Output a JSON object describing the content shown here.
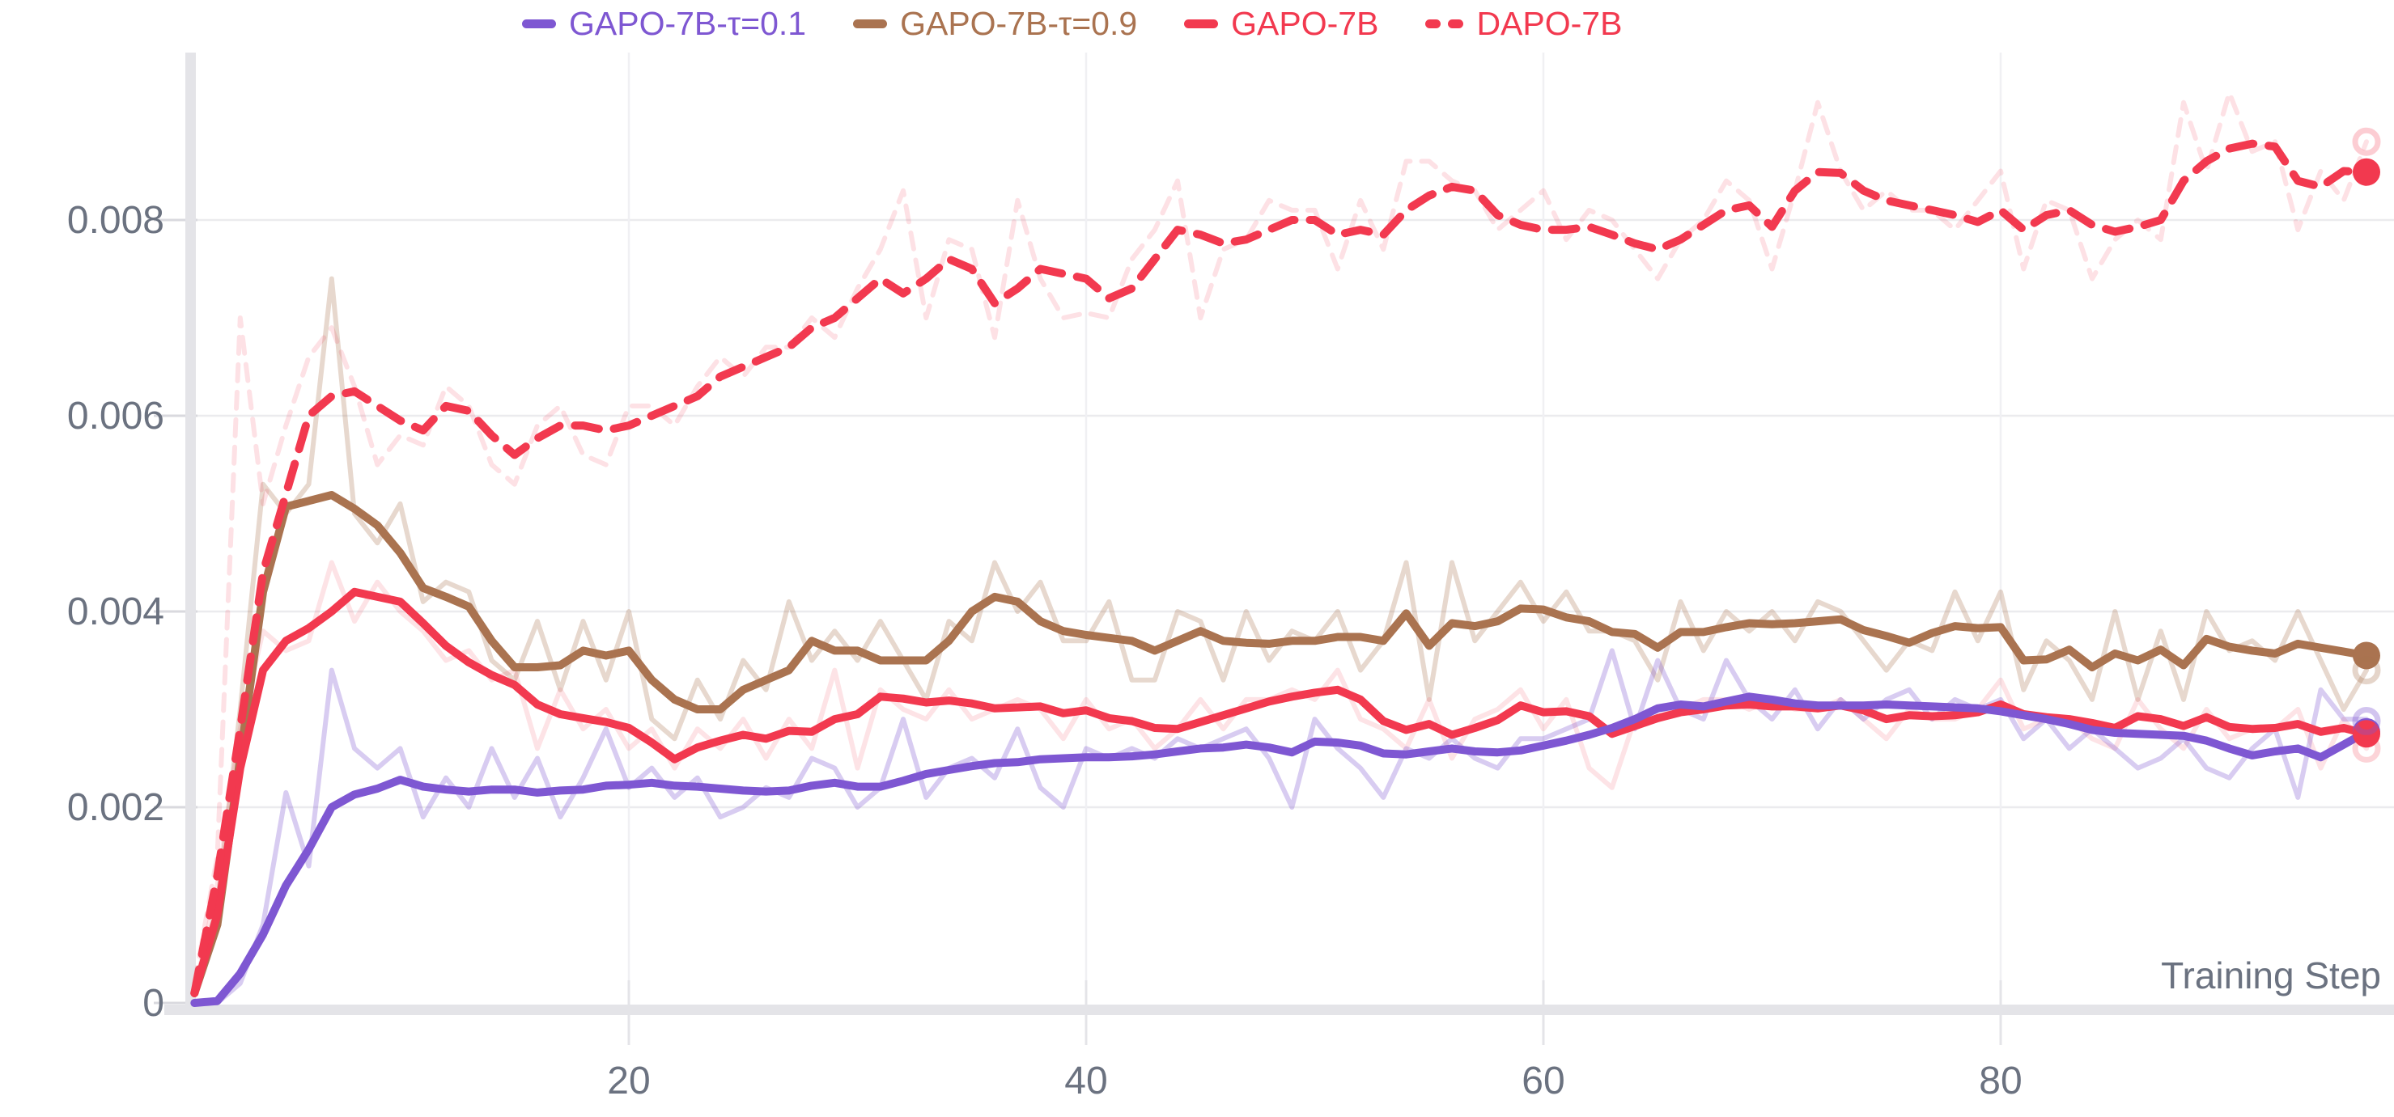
{
  "legend": {
    "items": [
      {
        "label": "GAPO-7B-τ=0.1",
        "color": "#7e57d2",
        "dashed": false
      },
      {
        "label": "GAPO-7B-τ=0.9",
        "color": "#aa7350",
        "dashed": false
      },
      {
        "label": "GAPO-7B",
        "color": "#f2394f",
        "dashed": false
      },
      {
        "label": "DAPO-7B",
        "color": "#f2394f",
        "dashed": true
      }
    ]
  },
  "axes": {
    "x_label": "Training Step",
    "x_ticks": [
      20,
      40,
      60,
      80
    ],
    "y_ticks": [
      0,
      0.002,
      0.004,
      0.006,
      0.008
    ],
    "y_tick_labels": [
      "0",
      "0.002",
      "0.004",
      "0.006",
      "0.008"
    ],
    "tick_color": "#6b7280",
    "grid_color": "#ebebee",
    "axis_bar_color": "#e4e4e8"
  },
  "chart_data": {
    "type": "line",
    "title": "",
    "xlabel": "Training Step",
    "ylabel": "",
    "x_start": 1,
    "x_end": 96,
    "xlim": [
      0,
      97.5
    ],
    "ylim": [
      -0.0014,
      0.0097
    ],
    "grid": true,
    "legend_position": "top-center",
    "series": [
      {
        "name": "GAPO-7B-τ=0.9-raw",
        "role": "raw",
        "color": "#aa7350",
        "opacity": 0.28,
        "dashed": false,
        "width": 6,
        "values": [
          0.0001,
          0.001,
          0.003,
          0.0053,
          0.005,
          0.0053,
          0.0074,
          0.005,
          0.0047,
          0.0051,
          0.0041,
          0.0043,
          0.0042,
          0.0035,
          0.0033,
          0.0039,
          0.0032,
          0.0039,
          0.0033,
          0.004,
          0.0029,
          0.0027,
          0.0033,
          0.0029,
          0.0035,
          0.0032,
          0.0041,
          0.0035,
          0.0038,
          0.0035,
          0.0039,
          0.0035,
          0.0031,
          0.0039,
          0.0037,
          0.0045,
          0.004,
          0.0043,
          0.0037,
          0.0037,
          0.0041,
          0.0033,
          0.0033,
          0.004,
          0.0039,
          0.0033,
          0.004,
          0.0035,
          0.0038,
          0.0037,
          0.004,
          0.0034,
          0.0037,
          0.0045,
          0.0031,
          0.0045,
          0.0037,
          0.004,
          0.0043,
          0.0039,
          0.0042,
          0.0038,
          0.0038,
          0.0037,
          0.0033,
          0.0041,
          0.0036,
          0.004,
          0.0038,
          0.004,
          0.0037,
          0.0041,
          0.004,
          0.0037,
          0.0034,
          0.0037,
          0.0036,
          0.0042,
          0.0037,
          0.0042,
          0.0032,
          0.0037,
          0.0035,
          0.0031,
          0.004,
          0.0031,
          0.0038,
          0.0031,
          0.004,
          0.0036,
          0.0037,
          0.0035,
          0.004,
          0.0035,
          0.003,
          0.0034
        ]
      },
      {
        "name": "GAPO-7B-raw",
        "role": "raw",
        "color": "#f2394f",
        "opacity": 0.14,
        "dashed": false,
        "width": 6,
        "values": [
          0.0001,
          0.0012,
          0.0028,
          0.0038,
          0.0036,
          0.0037,
          0.0045,
          0.0039,
          0.0043,
          0.004,
          0.0038,
          0.0035,
          0.0036,
          0.0033,
          0.0034,
          0.0026,
          0.0032,
          0.0028,
          0.003,
          0.0026,
          0.0028,
          0.0024,
          0.0028,
          0.0026,
          0.0029,
          0.0025,
          0.0029,
          0.0026,
          0.0034,
          0.0024,
          0.0032,
          0.003,
          0.0029,
          0.0032,
          0.0029,
          0.003,
          0.0031,
          0.003,
          0.0027,
          0.0031,
          0.0028,
          0.0029,
          0.0026,
          0.0028,
          0.0031,
          0.0028,
          0.0031,
          0.0031,
          0.0032,
          0.0031,
          0.0034,
          0.0029,
          0.0028,
          0.0026,
          0.0031,
          0.0025,
          0.0029,
          0.003,
          0.0032,
          0.0028,
          0.0031,
          0.0024,
          0.0022,
          0.0029,
          0.003,
          0.003,
          0.0031,
          0.0031,
          0.003,
          0.0031,
          0.003,
          0.003,
          0.0031,
          0.0029,
          0.0027,
          0.003,
          0.0029,
          0.0029,
          0.003,
          0.0033,
          0.0028,
          0.0029,
          0.0029,
          0.0027,
          0.0026,
          0.0031,
          0.0028,
          0.0026,
          0.003,
          0.0027,
          0.0028,
          0.0028,
          0.003,
          0.0024,
          0.0029,
          0.0026
        ]
      },
      {
        "name": "GAPO-7B-τ=0.1-raw",
        "role": "raw",
        "color": "#7e57d2",
        "opacity": 0.3,
        "dashed": false,
        "width": 6,
        "values": [
          0.0,
          0.0,
          0.0002,
          0.0008,
          0.00215,
          0.0014,
          0.0034,
          0.0026,
          0.0024,
          0.0026,
          0.0019,
          0.0023,
          0.002,
          0.0026,
          0.0021,
          0.0025,
          0.0019,
          0.0023,
          0.0028,
          0.0022,
          0.0024,
          0.0021,
          0.0023,
          0.0019,
          0.002,
          0.0022,
          0.0021,
          0.0025,
          0.0024,
          0.002,
          0.0022,
          0.0029,
          0.0021,
          0.0024,
          0.0025,
          0.0023,
          0.0028,
          0.0022,
          0.002,
          0.0026,
          0.0025,
          0.0026,
          0.0025,
          0.0027,
          0.0026,
          0.0027,
          0.0028,
          0.0025,
          0.002,
          0.0029,
          0.0026,
          0.0024,
          0.0021,
          0.0026,
          0.0025,
          0.0027,
          0.0025,
          0.0024,
          0.0027,
          0.0027,
          0.0028,
          0.0029,
          0.0036,
          0.0028,
          0.0035,
          0.003,
          0.0029,
          0.0035,
          0.0031,
          0.0029,
          0.0032,
          0.0028,
          0.0031,
          0.0029,
          0.0031,
          0.0032,
          0.0029,
          0.0031,
          0.003,
          0.0031,
          0.0027,
          0.0029,
          0.0026,
          0.0028,
          0.0026,
          0.0024,
          0.0025,
          0.0027,
          0.0024,
          0.0023,
          0.0026,
          0.0028,
          0.0021,
          0.0032,
          0.0029,
          0.0029
        ]
      },
      {
        "name": "DAPO-7B-raw",
        "role": "raw",
        "color": "#f2394f",
        "opacity": 0.15,
        "dashed": true,
        "width": 6,
        "values": [
          0.0002,
          0.0015,
          0.007,
          0.0051,
          0.0059,
          0.0066,
          0.0069,
          0.0063,
          0.0055,
          0.0058,
          0.0057,
          0.0063,
          0.0061,
          0.0055,
          0.0053,
          0.0059,
          0.0061,
          0.0056,
          0.0055,
          0.0061,
          0.0061,
          0.0059,
          0.0063,
          0.0066,
          0.0064,
          0.0067,
          0.0067,
          0.007,
          0.0068,
          0.0073,
          0.0077,
          0.0083,
          0.007,
          0.0078,
          0.0077,
          0.0068,
          0.0082,
          0.0074,
          0.007,
          0.00705,
          0.007,
          0.0076,
          0.0079,
          0.0084,
          0.007,
          0.0077,
          0.0078,
          0.0082,
          0.0081,
          0.0081,
          0.0075,
          0.0082,
          0.0077,
          0.0086,
          0.0086,
          0.0084,
          0.0083,
          0.0079,
          0.0081,
          0.0083,
          0.0078,
          0.0081,
          0.008,
          0.0077,
          0.0074,
          0.0078,
          0.008,
          0.0084,
          0.0082,
          0.0075,
          0.0083,
          0.0092,
          0.0085,
          0.0081,
          0.0083,
          0.0081,
          0.0081,
          0.0079,
          0.0082,
          0.0085,
          0.0075,
          0.0082,
          0.0081,
          0.0074,
          0.0078,
          0.008,
          0.0078,
          0.0092,
          0.0085,
          0.0093,
          0.0087,
          0.0088,
          0.0079,
          0.0085,
          0.0082,
          0.0088
        ]
      },
      {
        "name": "GAPO-7B-τ=0.9",
        "role": "smoothed",
        "color": "#aa7350",
        "opacity": 1,
        "dashed": false,
        "width": 10,
        "values": [
          0.0001,
          0.0008,
          0.0025,
          0.0042,
          0.00507,
          0.00513,
          0.00519,
          0.00505,
          0.00488,
          0.0046,
          0.00424,
          0.00415,
          0.00405,
          0.0037,
          0.00343,
          0.00343,
          0.00345,
          0.0036,
          0.00355,
          0.0036,
          0.0033,
          0.0031,
          0.003,
          0.003,
          0.0032,
          0.0033,
          0.0034,
          0.0037,
          0.0036,
          0.0036,
          0.0035,
          0.0035,
          0.0035,
          0.0037,
          0.004,
          0.00415,
          0.0041,
          0.0039,
          0.0038,
          0.00376,
          0.00373,
          0.0037,
          0.0036,
          0.0037,
          0.0038,
          0.0037,
          0.00368,
          0.00367,
          0.0037,
          0.0037,
          0.00374,
          0.00374,
          0.0037,
          0.00398,
          0.00365,
          0.00388,
          0.00385,
          0.0039,
          0.00403,
          0.00402,
          0.00394,
          0.0039,
          0.00379,
          0.00377,
          0.00363,
          0.00379,
          0.00379,
          0.00384,
          0.00388,
          0.00387,
          0.00388,
          0.0039,
          0.00392,
          0.00381,
          0.00375,
          0.00368,
          0.00378,
          0.00385,
          0.00383,
          0.00384,
          0.0035,
          0.00351,
          0.00361,
          0.00343,
          0.00357,
          0.0035,
          0.00361,
          0.00345,
          0.00372,
          0.00364,
          0.0036,
          0.00357,
          0.00367,
          0.00363,
          0.00359,
          0.00355
        ]
      },
      {
        "name": "GAPO-7B",
        "role": "smoothed",
        "color": "#f2394f",
        "opacity": 1,
        "dashed": false,
        "width": 10,
        "values": [
          0.0001,
          0.0009,
          0.0024,
          0.0034,
          0.0037,
          0.00383,
          0.004,
          0.0042,
          0.00415,
          0.0041,
          0.00388,
          0.00365,
          0.00348,
          0.00335,
          0.00325,
          0.00305,
          0.00295,
          0.00291,
          0.00287,
          0.00281,
          0.00266,
          0.00249,
          0.00261,
          0.00268,
          0.00274,
          0.0027,
          0.00278,
          0.00277,
          0.0029,
          0.00295,
          0.00313,
          0.00311,
          0.00307,
          0.00309,
          0.00306,
          0.00301,
          0.00302,
          0.00303,
          0.00296,
          0.00299,
          0.00291,
          0.00288,
          0.00281,
          0.0028,
          0.00287,
          0.00294,
          0.00301,
          0.00308,
          0.00313,
          0.00317,
          0.0032,
          0.0031,
          0.00288,
          0.00279,
          0.00285,
          0.00274,
          0.00281,
          0.00289,
          0.00304,
          0.00297,
          0.00298,
          0.00293,
          0.00275,
          0.00283,
          0.00291,
          0.00297,
          0.003,
          0.00304,
          0.00305,
          0.00303,
          0.00303,
          0.00301,
          0.00304,
          0.00299,
          0.0029,
          0.00294,
          0.00293,
          0.00294,
          0.00297,
          0.00305,
          0.00295,
          0.00292,
          0.0029,
          0.00286,
          0.00281,
          0.00293,
          0.0029,
          0.00283,
          0.00292,
          0.00282,
          0.0028,
          0.00281,
          0.00285,
          0.00277,
          0.00281,
          0.00275
        ]
      },
      {
        "name": "GAPO-7B-τ=0.1",
        "role": "smoothed",
        "color": "#7e57d2",
        "opacity": 1,
        "dashed": false,
        "width": 10,
        "values": [
          0.0,
          2e-05,
          0.0003,
          0.0007,
          0.0012,
          0.00157,
          0.002,
          0.00213,
          0.00219,
          0.00228,
          0.00221,
          0.00218,
          0.00216,
          0.00218,
          0.00218,
          0.00215,
          0.00217,
          0.00218,
          0.00222,
          0.00223,
          0.00225,
          0.00222,
          0.00221,
          0.00219,
          0.00217,
          0.00216,
          0.00217,
          0.00222,
          0.00225,
          0.00221,
          0.00221,
          0.00227,
          0.00234,
          0.00238,
          0.00242,
          0.00245,
          0.00246,
          0.00249,
          0.0025,
          0.00251,
          0.00251,
          0.00252,
          0.00254,
          0.00257,
          0.0026,
          0.00261,
          0.00264,
          0.00261,
          0.00256,
          0.00267,
          0.00266,
          0.00263,
          0.00255,
          0.00254,
          0.00257,
          0.0026,
          0.00257,
          0.00256,
          0.00258,
          0.00263,
          0.00268,
          0.00274,
          0.00281,
          0.0029,
          0.00301,
          0.00305,
          0.00303,
          0.00308,
          0.00313,
          0.0031,
          0.00306,
          0.00304,
          0.00304,
          0.00304,
          0.00305,
          0.00304,
          0.00303,
          0.00302,
          0.00301,
          0.00298,
          0.00294,
          0.0029,
          0.00285,
          0.00279,
          0.00276,
          0.00275,
          0.00274,
          0.00273,
          0.00268,
          0.0026,
          0.00253,
          0.00257,
          0.0026,
          0.00251,
          0.00264,
          0.00277
        ]
      },
      {
        "name": "DAPO-7B",
        "role": "smoothed",
        "color": "#f2394f",
        "opacity": 1,
        "dashed": true,
        "width": 10,
        "values": [
          0.0001,
          0.0013,
          0.0028,
          0.0044,
          0.0052,
          0.006,
          0.0062,
          0.00625,
          0.0061,
          0.00595,
          0.00585,
          0.0061,
          0.00605,
          0.0058,
          0.0056,
          0.00577,
          0.0059,
          0.0059,
          0.00585,
          0.0059,
          0.006,
          0.0061,
          0.0062,
          0.0064,
          0.0065,
          0.0066,
          0.0067,
          0.0069,
          0.007,
          0.0072,
          0.0074,
          0.00725,
          0.0074,
          0.0076,
          0.0075,
          0.00715,
          0.0073,
          0.0075,
          0.00745,
          0.0074,
          0.0072,
          0.0073,
          0.0076,
          0.0079,
          0.00785,
          0.00776,
          0.0078,
          0.0079,
          0.008,
          0.008,
          0.00785,
          0.0079,
          0.00785,
          0.0081,
          0.00825,
          0.00834,
          0.0083,
          0.00805,
          0.00795,
          0.0079,
          0.0079,
          0.00793,
          0.00785,
          0.00776,
          0.0077,
          0.0078,
          0.00795,
          0.0081,
          0.00815,
          0.00793,
          0.0083,
          0.00849,
          0.00848,
          0.0083,
          0.0082,
          0.00815,
          0.0081,
          0.00805,
          0.00798,
          0.0081,
          0.0079,
          0.00805,
          0.0081,
          0.00795,
          0.00788,
          0.00793,
          0.008,
          0.0084,
          0.0086,
          0.00873,
          0.00878,
          0.00875,
          0.0084,
          0.00834,
          0.0085,
          0.00849
        ]
      }
    ],
    "end_markers": [
      {
        "series": "DAPO-7B",
        "step": 96,
        "value": 0.00849,
        "color": "#f2394f",
        "style": "filled"
      },
      {
        "series": "GAPO-7B-τ=0.9",
        "step": 96,
        "value": 0.00355,
        "color": "#aa7350",
        "style": "filled"
      },
      {
        "series": "GAPO-7B-τ=0.1",
        "step": 96,
        "value": 0.00277,
        "color": "#7e57d2",
        "style": "filled"
      },
      {
        "series": "GAPO-7B",
        "step": 96,
        "value": 0.00275,
        "color": "#f2394f",
        "style": "filled"
      },
      {
        "series": "DAPO-7B-raw",
        "step": 96,
        "value": 0.0088,
        "color": "#f2394f",
        "style": "ring",
        "opacity": 0.25
      },
      {
        "series": "GAPO-7B-τ=0.1-raw",
        "step": 96,
        "value": 0.00288,
        "color": "#7e57d2",
        "style": "ring",
        "opacity": 0.35
      },
      {
        "series": "GAPO-7B-raw",
        "step": 96,
        "value": 0.0026,
        "color": "#f2394f",
        "style": "ring",
        "opacity": 0.22
      },
      {
        "series": "GAPO-7B-τ=0.9-raw",
        "step": 96,
        "value": 0.0034,
        "color": "#aa7350",
        "style": "ring",
        "opacity": 0.3
      }
    ]
  }
}
